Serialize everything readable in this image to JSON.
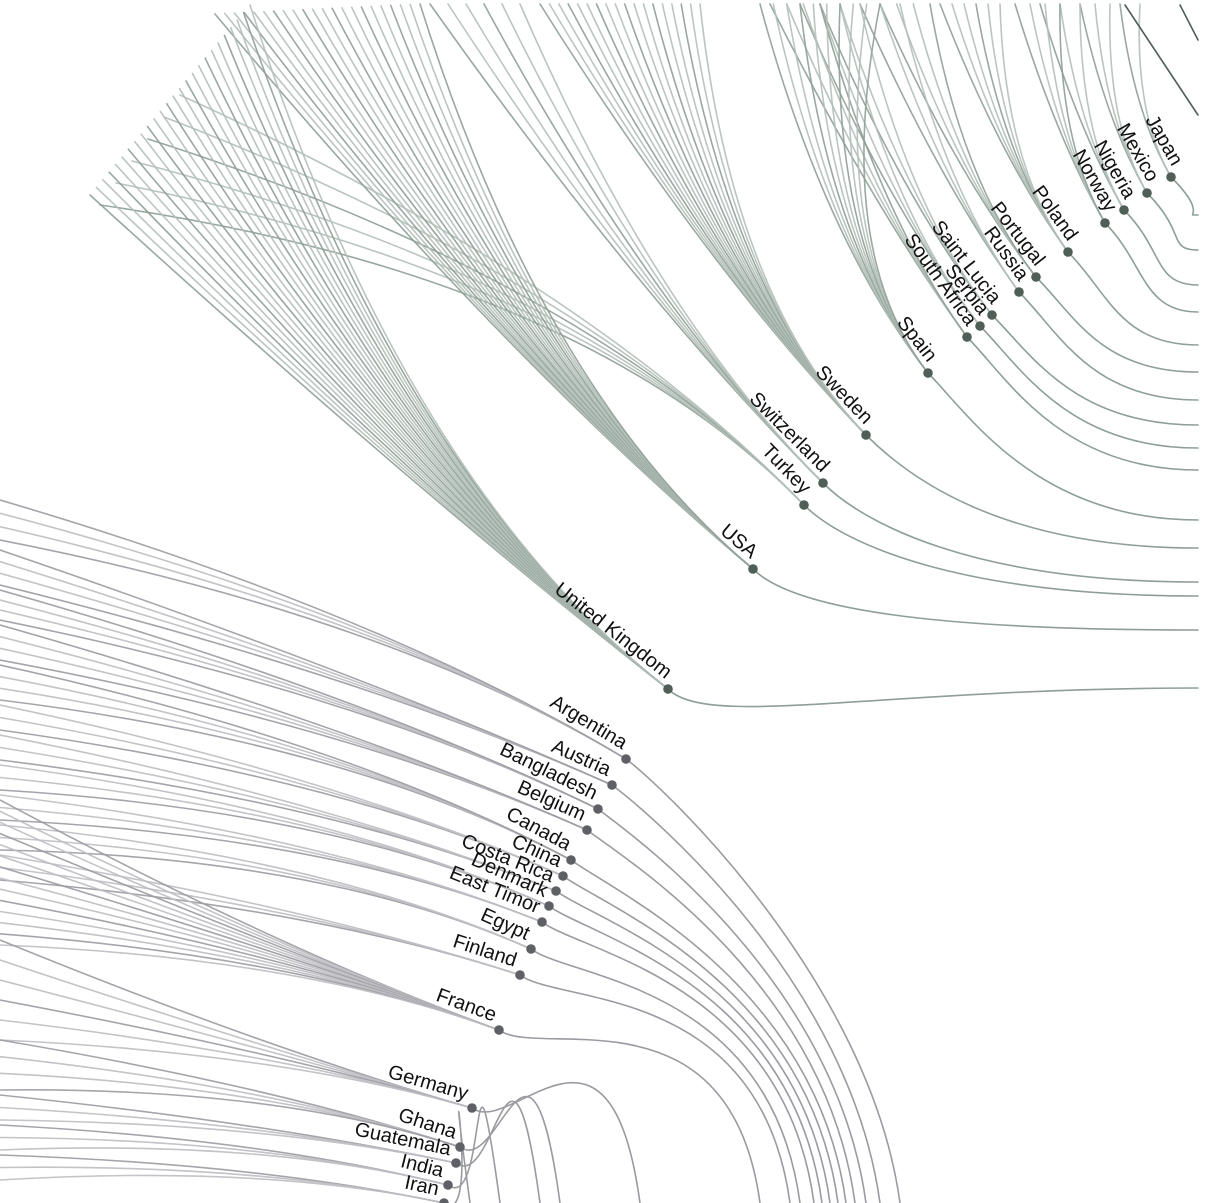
{
  "diagram": {
    "type": "hierarchical-edge-bundling-fan",
    "colors": {
      "green_group": "#4f5f57",
      "green_link": "#8e9f96",
      "green_link_light": "#b3bfb8",
      "grey_group": "#5f6066",
      "grey_link": "#9a9ba1",
      "grey_link_light": "#bcbdc2",
      "background": "#ffffff",
      "label": "#111111"
    },
    "nodes": [
      {
        "label": "Argentina",
        "group": "grey"
      },
      {
        "label": "Austria",
        "group": "grey"
      },
      {
        "label": "Bangladesh",
        "group": "grey"
      },
      {
        "label": "Belgium",
        "group": "grey"
      },
      {
        "label": "Canada",
        "group": "grey"
      },
      {
        "label": "China",
        "group": "grey"
      },
      {
        "label": "Costa Rica",
        "group": "grey"
      },
      {
        "label": "Denmark",
        "group": "grey"
      },
      {
        "label": "East Timor",
        "group": "grey"
      },
      {
        "label": "Egypt",
        "group": "grey"
      },
      {
        "label": "Finland",
        "group": "grey"
      },
      {
        "label": "France",
        "group": "grey"
      },
      {
        "label": "Germany",
        "group": "grey"
      },
      {
        "label": "Ghana",
        "group": "grey"
      },
      {
        "label": "Guatemala",
        "group": "grey"
      },
      {
        "label": "India",
        "group": "grey"
      },
      {
        "label": "Iran",
        "group": "grey"
      },
      {
        "label": "Japan",
        "group": "green"
      },
      {
        "label": "Mexico",
        "group": "green"
      },
      {
        "label": "Nigeria",
        "group": "green"
      },
      {
        "label": "Norway",
        "group": "green"
      },
      {
        "label": "Poland",
        "group": "green"
      },
      {
        "label": "Portugal",
        "group": "green"
      },
      {
        "label": "Russia",
        "group": "green"
      },
      {
        "label": "Saint Lucia",
        "group": "green"
      },
      {
        "label": "Serbia",
        "group": "green"
      },
      {
        "label": "South Africa",
        "group": "green"
      },
      {
        "label": "Spain",
        "group": "green"
      },
      {
        "label": "Sweden",
        "group": "green"
      },
      {
        "label": "Switzerland",
        "group": "green"
      },
      {
        "label": "Turkey",
        "group": "green"
      },
      {
        "label": "USA",
        "group": "green"
      },
      {
        "label": "United Kingdom",
        "group": "green"
      }
    ]
  }
}
